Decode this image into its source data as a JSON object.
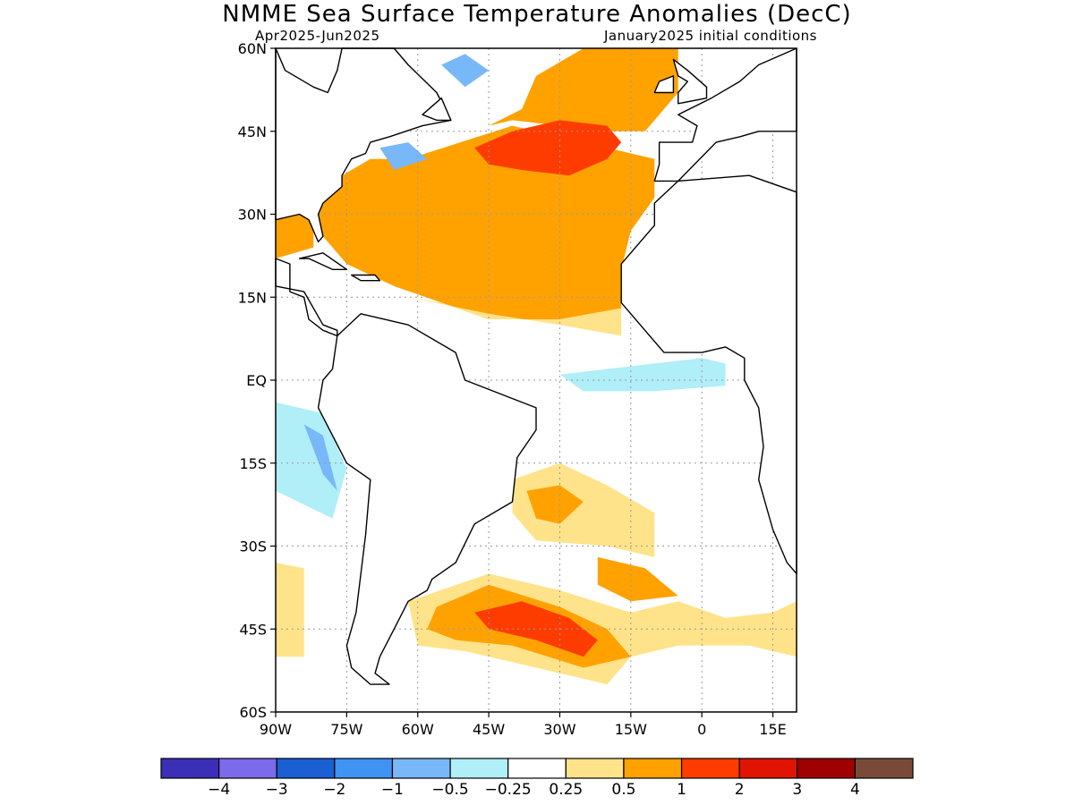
{
  "title": "NMME Sea Surface Temperature Anomalies (DecC)",
  "subtitle_left": "Apr2025-Jun2025",
  "subtitle_right": "January2025 initial conditions",
  "lat_ticks": [
    {
      "value": 60,
      "label": "60N"
    },
    {
      "value": 45,
      "label": "45N"
    },
    {
      "value": 30,
      "label": "30N"
    },
    {
      "value": 15,
      "label": "15N"
    },
    {
      "value": 0,
      "label": "EQ"
    },
    {
      "value": -15,
      "label": "15S"
    },
    {
      "value": -30,
      "label": "30S"
    },
    {
      "value": -45,
      "label": "45S"
    },
    {
      "value": -60,
      "label": "60S"
    }
  ],
  "lon_ticks": [
    {
      "value": -90,
      "label": "90W"
    },
    {
      "value": -75,
      "label": "75W"
    },
    {
      "value": -60,
      "label": "60W"
    },
    {
      "value": -45,
      "label": "45W"
    },
    {
      "value": -30,
      "label": "30W"
    },
    {
      "value": -15,
      "label": "15W"
    },
    {
      "value": 0,
      "label": "0"
    },
    {
      "value": 15,
      "label": "15E"
    }
  ],
  "extent": {
    "lon_min": -90,
    "lon_max": 20,
    "lat_min": -60,
    "lat_max": 60
  },
  "colorbar": {
    "colors": [
      "#3b2fb8",
      "#7b6bec",
      "#1a5fd4",
      "#3f93f2",
      "#78b8f8",
      "#b0eef8",
      "#ffffff",
      "#ffe38a",
      "#ffa200",
      "#ff3c00",
      "#e01400",
      "#a00000",
      "#7a4a38"
    ],
    "labels": [
      "−4",
      "−3",
      "−2",
      "−1",
      "−0.5",
      "−0.25",
      "0.25",
      "0.5",
      "1",
      "2",
      "3",
      "4"
    ]
  },
  "anomaly_regions": [
    {
      "level": 0.5,
      "coords": [
        [
          -62,
          40
        ],
        [
          -40,
          46
        ],
        [
          -20,
          42
        ],
        [
          -10,
          40
        ],
        [
          -10,
          33
        ],
        [
          -15,
          27
        ],
        [
          -17,
          20
        ],
        [
          -17,
          13
        ],
        [
          -30,
          11
        ],
        [
          -45,
          11
        ],
        [
          -55,
          14
        ],
        [
          -65,
          17
        ],
        [
          -75,
          21
        ],
        [
          -82,
          28
        ],
        [
          -80,
          33
        ],
        [
          -76,
          37
        ],
        [
          -70,
          40
        ]
      ]
    },
    {
      "level": 0.5,
      "coords": [
        [
          -45,
          46
        ],
        [
          -38,
          49
        ],
        [
          -35,
          55
        ],
        [
          -25,
          60
        ],
        [
          -5,
          60
        ],
        [
          -5,
          52
        ],
        [
          -9,
          48
        ],
        [
          -12,
          45
        ],
        [
          -20,
          45
        ],
        [
          -40,
          47
        ]
      ]
    },
    {
      "level": 0.5,
      "coords": [
        [
          -90,
          30
        ],
        [
          -82,
          30
        ],
        [
          -82,
          24
        ],
        [
          -90,
          22
        ]
      ]
    },
    {
      "level": 0.25,
      "coords": [
        [
          -62,
          15
        ],
        [
          -45,
          12
        ],
        [
          -30,
          10
        ],
        [
          -17,
          8
        ],
        [
          -17,
          13
        ],
        [
          -30,
          11
        ],
        [
          -45,
          11
        ],
        [
          -55,
          14
        ]
      ]
    },
    {
      "level": 1,
      "coords": [
        [
          -48,
          42
        ],
        [
          -40,
          45
        ],
        [
          -30,
          47
        ],
        [
          -20,
          46
        ],
        [
          -17,
          43
        ],
        [
          -20,
          40
        ],
        [
          -28,
          37
        ],
        [
          -38,
          38
        ],
        [
          -45,
          39
        ]
      ]
    },
    {
      "level": 0.25,
      "coords": [
        [
          -40,
          -18
        ],
        [
          -30,
          -15
        ],
        [
          -20,
          -19
        ],
        [
          -10,
          -24
        ],
        [
          -10,
          -32
        ],
        [
          -20,
          -30
        ],
        [
          -35,
          -29
        ],
        [
          -40,
          -24
        ]
      ]
    },
    {
      "level": 0.5,
      "coords": [
        [
          -37,
          -20
        ],
        [
          -30,
          -19
        ],
        [
          -25,
          -22
        ],
        [
          -30,
          -26
        ],
        [
          -35,
          -25
        ]
      ]
    },
    {
      "level": 0.5,
      "coords": [
        [
          -22,
          -32
        ],
        [
          -12,
          -34
        ],
        [
          -5,
          -39
        ],
        [
          -15,
          -40
        ],
        [
          -22,
          -37
        ]
      ]
    },
    {
      "level": 0.25,
      "coords": [
        [
          -62,
          -40
        ],
        [
          -45,
          -35
        ],
        [
          -30,
          -38
        ],
        [
          -15,
          -42
        ],
        [
          -5,
          -40
        ],
        [
          5,
          -43
        ],
        [
          15,
          -42
        ],
        [
          20,
          -40
        ],
        [
          20,
          -50
        ],
        [
          10,
          -48
        ],
        [
          -5,
          -48
        ],
        [
          -15,
          -50
        ],
        [
          -20,
          -55
        ],
        [
          -35,
          -52
        ],
        [
          -50,
          -49
        ],
        [
          -60,
          -48
        ]
      ]
    },
    {
      "level": 0.5,
      "coords": [
        [
          -56,
          -41
        ],
        [
          -45,
          -37
        ],
        [
          -30,
          -41
        ],
        [
          -20,
          -45
        ],
        [
          -15,
          -50
        ],
        [
          -25,
          -52
        ],
        [
          -40,
          -48
        ],
        [
          -52,
          -47
        ],
        [
          -58,
          -45
        ]
      ]
    },
    {
      "level": 1,
      "coords": [
        [
          -48,
          -42
        ],
        [
          -38,
          -40
        ],
        [
          -28,
          -43
        ],
        [
          -22,
          -47
        ],
        [
          -25,
          -50
        ],
        [
          -35,
          -47
        ],
        [
          -45,
          -45
        ]
      ]
    },
    {
      "level": 0.25,
      "coords": [
        [
          -90,
          -33
        ],
        [
          -84,
          -34
        ],
        [
          -84,
          -50
        ],
        [
          -90,
          -50
        ]
      ]
    },
    {
      "level": -0.25,
      "coords": [
        [
          -30,
          1
        ],
        [
          -10,
          3
        ],
        [
          0,
          4
        ],
        [
          5,
          3
        ],
        [
          5,
          -1
        ],
        [
          -10,
          -2
        ],
        [
          -25,
          -2
        ]
      ]
    },
    {
      "level": -0.25,
      "coords": [
        [
          -90,
          -4
        ],
        [
          -80,
          -6
        ],
        [
          -75,
          -16
        ],
        [
          -78,
          -25
        ],
        [
          -90,
          -20
        ]
      ]
    },
    {
      "level": -0.5,
      "coords": [
        [
          -84,
          -8
        ],
        [
          -80,
          -10
        ],
        [
          -77,
          -20
        ],
        [
          -80,
          -17
        ]
      ]
    },
    {
      "level": -0.5,
      "coords": [
        [
          -55,
          57
        ],
        [
          -50,
          59
        ],
        [
          -45,
          56
        ],
        [
          -50,
          53
        ]
      ]
    },
    {
      "level": -0.5,
      "coords": [
        [
          -68,
          42
        ],
        [
          -62,
          43
        ],
        [
          -58,
          40
        ],
        [
          -65,
          38
        ]
      ]
    }
  ],
  "land_outlines": [
    {
      "name": "North America",
      "coords": [
        [
          -90,
          60
        ],
        [
          -88,
          56
        ],
        [
          -82,
          53
        ],
        [
          -79,
          52
        ],
        [
          -77,
          56
        ],
        [
          -76,
          60
        ],
        [
          -65,
          60
        ],
        [
          -62,
          57
        ],
        [
          -56,
          52
        ],
        [
          -53,
          47
        ],
        [
          -59,
          46
        ],
        [
          -66,
          44
        ],
        [
          -70,
          43
        ],
        [
          -71,
          41
        ],
        [
          -74,
          40
        ],
        [
          -76,
          37
        ],
        [
          -76,
          35
        ],
        [
          -80,
          32
        ],
        [
          -81,
          30
        ],
        [
          -80,
          26
        ],
        [
          -81,
          25
        ],
        [
          -82,
          27
        ],
        [
          -83,
          29
        ],
        [
          -85,
          30
        ],
        [
          -90,
          29
        ]
      ]
    },
    {
      "name": "Central America",
      "coords": [
        [
          -90,
          22
        ],
        [
          -87,
          21
        ],
        [
          -87,
          16
        ],
        [
          -84,
          15
        ],
        [
          -83,
          11
        ],
        [
          -80,
          9
        ],
        [
          -77,
          8
        ],
        [
          -77,
          9
        ],
        [
          -80,
          10
        ],
        [
          -84,
          16
        ],
        [
          -90,
          17
        ]
      ]
    },
    {
      "name": "South America",
      "coords": [
        [
          -77,
          8
        ],
        [
          -72,
          12
        ],
        [
          -62,
          10
        ],
        [
          -52,
          5
        ],
        [
          -50,
          0
        ],
        [
          -44,
          -2
        ],
        [
          -35,
          -5
        ],
        [
          -35,
          -9
        ],
        [
          -39,
          -14
        ],
        [
          -40,
          -22
        ],
        [
          -48,
          -26
        ],
        [
          -52,
          -33
        ],
        [
          -57,
          -36
        ],
        [
          -58,
          -38
        ],
        [
          -62,
          -40
        ],
        [
          -65,
          -45
        ],
        [
          -68,
          -50
        ],
        [
          -69,
          -53
        ],
        [
          -66,
          -55
        ],
        [
          -70,
          -55
        ],
        [
          -74,
          -52
        ],
        [
          -75,
          -48
        ],
        [
          -73,
          -42
        ],
        [
          -72,
          -35
        ],
        [
          -71,
          -28
        ],
        [
          -70,
          -18
        ],
        [
          -75,
          -15
        ],
        [
          -78,
          -10
        ],
        [
          -81,
          -5
        ],
        [
          -80,
          0
        ],
        [
          -78,
          2
        ]
      ]
    },
    {
      "name": "Africa",
      "coords": [
        [
          -5,
          36
        ],
        [
          -10,
          32
        ],
        [
          -10,
          28
        ],
        [
          -17,
          21
        ],
        [
          -17,
          14
        ],
        [
          -13,
          10
        ],
        [
          -8,
          5
        ],
        [
          0,
          5
        ],
        [
          5,
          6
        ],
        [
          9,
          4
        ],
        [
          9,
          0
        ],
        [
          12,
          -5
        ],
        [
          13,
          -12
        ],
        [
          12,
          -18
        ],
        [
          15,
          -27
        ],
        [
          18,
          -33
        ],
        [
          20,
          -35
        ],
        [
          20,
          34
        ],
        [
          10,
          37
        ]
      ]
    },
    {
      "name": "Europe",
      "coords": [
        [
          -10,
          36
        ],
        [
          -9,
          39
        ],
        [
          -9,
          43
        ],
        [
          -2,
          43
        ],
        [
          -1,
          46
        ],
        [
          -5,
          48
        ],
        [
          2,
          51
        ],
        [
          8,
          54
        ],
        [
          12,
          57
        ],
        [
          20,
          60
        ],
        [
          20,
          45
        ],
        [
          12,
          45
        ],
        [
          8,
          44
        ],
        [
          3,
          43
        ],
        [
          -5,
          36
        ]
      ]
    },
    {
      "name": "Great Britain",
      "coords": [
        [
          -5,
          50
        ],
        [
          1,
          51
        ],
        [
          1,
          53
        ],
        [
          -3,
          56
        ],
        [
          -6,
          58
        ],
        [
          -5,
          55
        ],
        [
          -3,
          54
        ],
        [
          -5,
          52
        ]
      ]
    },
    {
      "name": "Ireland",
      "coords": [
        [
          -10,
          52
        ],
        [
          -6,
          52
        ],
        [
          -6,
          55
        ],
        [
          -9,
          54
        ]
      ]
    },
    {
      "name": "Cuba",
      "coords": [
        [
          -85,
          22
        ],
        [
          -80,
          23
        ],
        [
          -75,
          20
        ],
        [
          -78,
          20
        ],
        [
          -83,
          22
        ]
      ]
    },
    {
      "name": "Hispaniola",
      "coords": [
        [
          -74,
          19
        ],
        [
          -69,
          19
        ],
        [
          -68,
          18
        ],
        [
          -72,
          18
        ]
      ]
    },
    {
      "name": "Newfoundland",
      "coords": [
        [
          -59,
          48
        ],
        [
          -55,
          51
        ],
        [
          -53,
          47
        ],
        [
          -56,
          47
        ]
      ]
    }
  ]
}
